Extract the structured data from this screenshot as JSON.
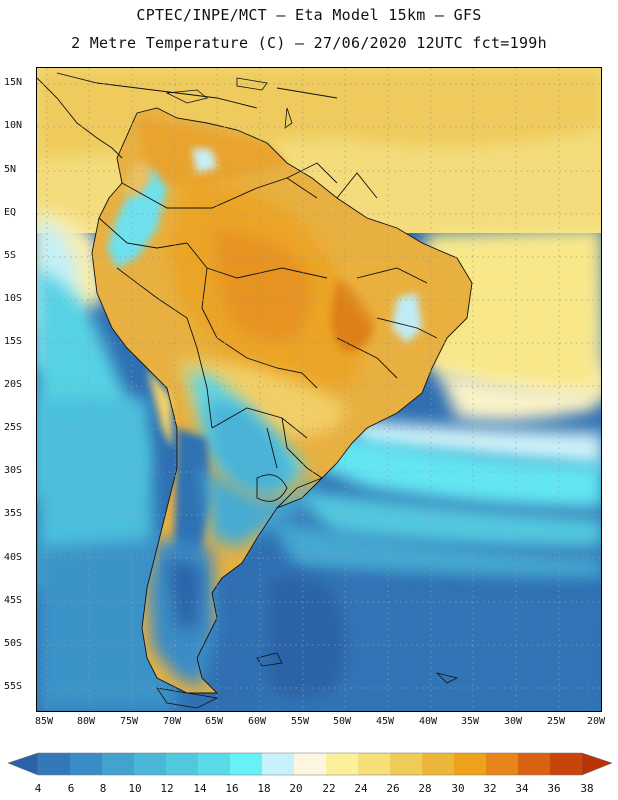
{
  "header": {
    "title": "CPTEC/INPE/MCT –  Eta Model 15km – GFS",
    "subtitle": "2 Metre Temperature (C) – 27/06/2020 12UTC fct=199h"
  },
  "map": {
    "region": "South America",
    "lat_labels": [
      "15N",
      "10N",
      "5N",
      "EQ",
      "5S",
      "10S",
      "15S",
      "20S",
      "25S",
      "30S",
      "35S",
      "40S",
      "45S",
      "50S",
      "55S"
    ],
    "lon_labels": [
      "85W",
      "80W",
      "75W",
      "70W",
      "65W",
      "60W",
      "55W",
      "50W",
      "45W",
      "40W",
      "35W",
      "30W",
      "25W",
      "20W"
    ],
    "grid": "dotted"
  },
  "colorbar": {
    "labels": [
      "4",
      "6",
      "8",
      "10",
      "12",
      "14",
      "16",
      "18",
      "20",
      "22",
      "24",
      "26",
      "28",
      "30",
      "32",
      "34",
      "36",
      "38"
    ],
    "colors": [
      "#2b63a8",
      "#3378b8",
      "#3a8cc6",
      "#42a3cf",
      "#4bb7d8",
      "#52c8df",
      "#5bdbe8",
      "#66f2f8",
      "#c8f2fb",
      "#fdf5e0",
      "#fcf09a",
      "#f6de78",
      "#efcb58",
      "#ebb63a",
      "#eda21c",
      "#e8851a",
      "#d96212",
      "#c84408",
      "#b83306"
    ]
  }
}
